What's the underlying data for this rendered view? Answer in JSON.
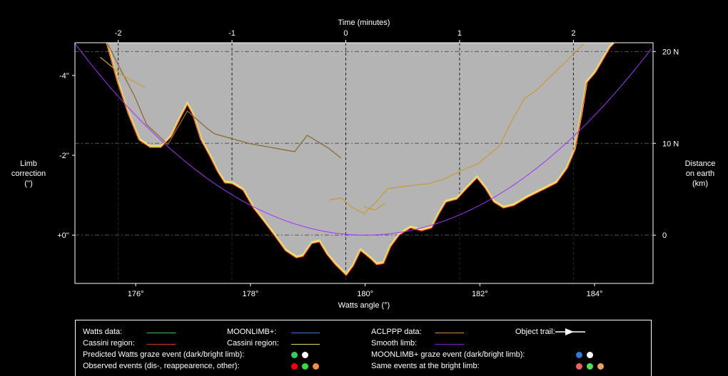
{
  "chart_data": {
    "type": "line",
    "title": "",
    "xlabel": "Watts angle (°)",
    "x2label": "Time (minutes)",
    "ylabel": "Limb\ncorrection\n('')",
    "y2label": "Distance\non earth\n(km)",
    "xlim": [
      174.94,
      185.02
    ],
    "ylim": [
      -4.82,
      1.21
    ],
    "x2lim": [
      -2.38,
      2.7
    ],
    "x_ticks": [
      {
        "v": 176,
        "label": "176°"
      },
      {
        "v": 178,
        "label": "178°"
      },
      {
        "v": 180,
        "label": "180°"
      },
      {
        "v": 182,
        "label": "182°"
      },
      {
        "v": 184,
        "label": "184°"
      }
    ],
    "x2_ticks": [
      {
        "v": -2,
        "label": "-2"
      },
      {
        "v": -1,
        "label": "-1"
      },
      {
        "v": 0,
        "label": "0"
      },
      {
        "v": 1,
        "label": "1"
      },
      {
        "v": 2,
        "label": "2"
      }
    ],
    "y_ticks": [
      {
        "v": -4,
        "label": "-4''"
      },
      {
        "v": -2,
        "label": "-2''"
      },
      {
        "v": 0,
        "label": "+0''"
      }
    ],
    "y2_ticks": [
      {
        "v": -4.6,
        "label": "20 N"
      },
      {
        "v": -2.3,
        "label": "10 N"
      },
      {
        "v": 0,
        "label": "0"
      }
    ],
    "grid": true,
    "colors": {
      "fill": "#b4b4b4",
      "profile": "#e8e070",
      "cassini": "#ff3a1a",
      "smooth": "#a030ff",
      "aclppp": "#c89a3a",
      "aclppp_dark": "#8a6a30"
    },
    "series": [
      {
        "name": "Watts data / limb profile",
        "x": [
          175.5,
          175.69,
          175.88,
          176.06,
          176.25,
          176.44,
          176.62,
          176.77,
          176.9,
          177.0,
          177.14,
          177.31,
          177.43,
          177.55,
          177.68,
          177.87,
          178.05,
          178.24,
          178.43,
          178.61,
          178.8,
          178.92,
          179.07,
          179.2,
          179.33,
          179.48,
          179.67,
          179.79,
          179.92,
          180.0,
          180.1,
          180.2,
          180.32,
          180.44,
          180.6,
          180.79,
          180.98,
          181.16,
          181.29,
          181.41,
          181.6,
          181.78,
          181.95,
          182.09,
          182.24,
          182.41,
          182.59,
          182.84,
          183.09,
          183.34,
          183.52,
          183.65,
          183.77,
          183.86,
          184.02,
          184.27,
          184.33
        ],
        "y": [
          -4.82,
          -3.84,
          -3.04,
          -2.41,
          -2.23,
          -2.23,
          -2.5,
          -2.95,
          -3.3,
          -3.04,
          -2.41,
          -1.96,
          -1.61,
          -1.34,
          -1.32,
          -1.16,
          -0.71,
          -0.36,
          0,
          0.36,
          0.54,
          0.5,
          0.18,
          0.14,
          0.45,
          0.71,
          0.98,
          0.75,
          0.36,
          0.45,
          0.57,
          0.71,
          0.68,
          0.27,
          -0.04,
          -0.21,
          -0.14,
          -0.21,
          -0.57,
          -0.86,
          -0.93,
          -1.21,
          -1.46,
          -1.21,
          -0.86,
          -0.71,
          -0.77,
          -0.98,
          -1.16,
          -1.34,
          -1.7,
          -2.14,
          -3.04,
          -3.84,
          -4.11,
          -4.73,
          -4.82
        ]
      },
      {
        "name": "ACLPPP data",
        "segments": [
          {
            "x": [
              175.5,
              175.75,
              175.98,
              176.19,
              176.56,
              176.9,
              177.24,
              177.37,
              177.99,
              178.77,
              178.99,
              179.36,
              179.58
            ],
            "y": [
              -4.82,
              -4.11,
              -3.48,
              -2.77,
              -2.27,
              -3.11,
              -2.68,
              -2.54,
              -2.29,
              -2.09,
              -2.5,
              -2.18,
              -1.93
            ]
          },
          {
            "x": [
              175.38,
              175.75,
              176.16
            ],
            "y": [
              -4.46,
              -4.02,
              -3.7
            ]
          },
          {
            "x": [
              179.38,
              179.58,
              179.79,
              179.98,
              180.17,
              180.39,
              180.6,
              181.1,
              181.35,
              181.72,
              181.97,
              182.34,
              182.59,
              182.78,
              182.97,
              183.46,
              183.81
            ],
            "y": [
              -0.88,
              -0.93,
              -0.68,
              -0.54,
              -0.8,
              -1.16,
              -1.21,
              -1.29,
              -1.39,
              -1.64,
              -1.79,
              -2.23,
              -2.95,
              -3.43,
              -3.61,
              -4.29,
              -4.79
            ]
          },
          {
            "x": [
              179.98,
              180.17,
              180.35
            ],
            "y": [
              -0.71,
              -0.63,
              -0.8
            ]
          }
        ]
      },
      {
        "name": "Smooth limb",
        "center": 180,
        "coef": -0.1875
      }
    ]
  },
  "legend": {
    "watts": "Watts data:",
    "cassini1": "Cassini region:",
    "predicted": "Predicted Watts graze event (dark/bright limb):",
    "observed": "Observed events (dis-, reappearence, other):",
    "moonlimb": "MOONLIMB+:",
    "cassini2": "Cassini region:",
    "aclppp": "ACLPPP data:",
    "smooth": "Smooth limb:",
    "moonlimb_graze": "MOONLIMB+ graze event (dark/bright limb):",
    "same_bright": "Same events at the bright limb:",
    "trail": "Object trail:"
  }
}
